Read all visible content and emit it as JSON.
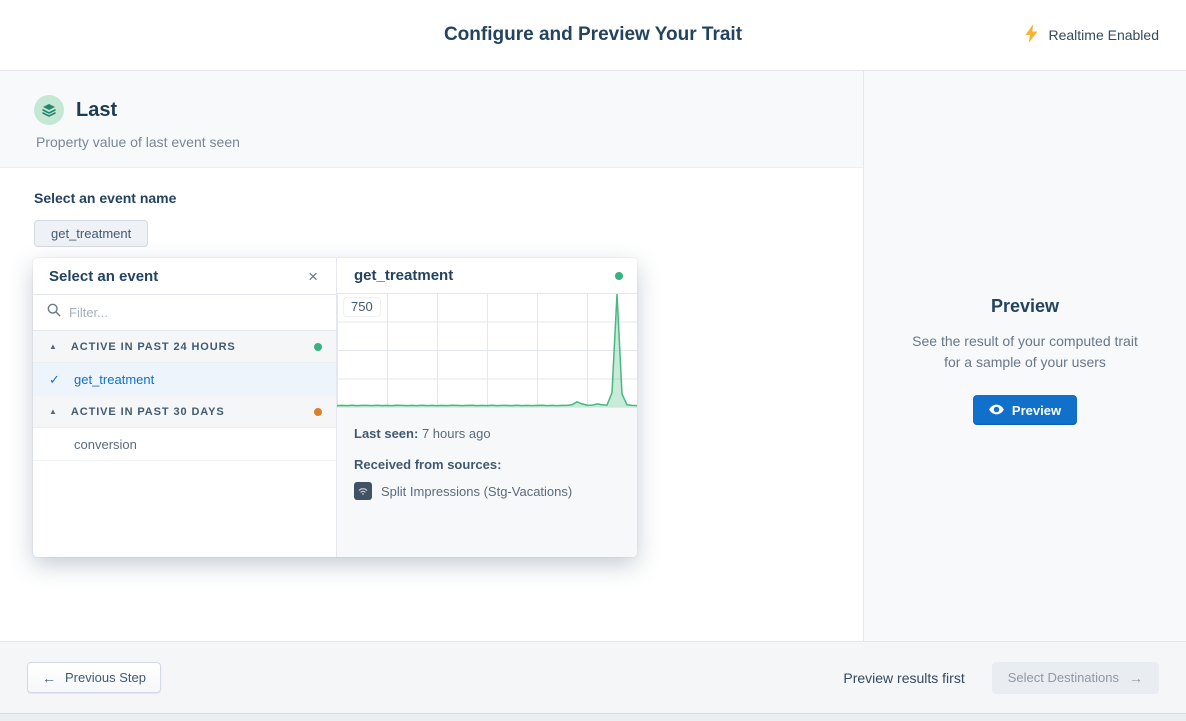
{
  "header": {
    "title": "Configure and Preview Your Trait",
    "realtime_label": "Realtime Enabled"
  },
  "trait": {
    "name": "Last",
    "description": "Property value of last event seen"
  },
  "config": {
    "event_label": "Select an event name",
    "selected_event_tag": "get_treatment"
  },
  "event_picker": {
    "title": "Select an event",
    "filter_placeholder": "Filter...",
    "groups": [
      {
        "label": "ACTIVE IN PAST 24 HOURS",
        "status_color": "#36b37e",
        "items": [
          {
            "label": "get_treatment",
            "selected": true
          }
        ]
      },
      {
        "label": "ACTIVE IN PAST 30 DAYS",
        "status_color": "#d9822b",
        "items": [
          {
            "label": "conversion",
            "selected": false
          }
        ]
      }
    ]
  },
  "event_detail": {
    "title": "get_treatment",
    "status_color": "#36b37e",
    "last_seen_label": "Last seen:",
    "last_seen_value": "7 hours ago",
    "sources_label": "Received from sources:",
    "sources": [
      "Split Impressions (Stg-Vacations)"
    ]
  },
  "chart_data": {
    "type": "area",
    "title": "get_treatment event volume",
    "y_tick_label": "750",
    "ylim": [
      0,
      750
    ],
    "line_color": "#47b881",
    "fill_color": "rgba(71,184,129,0.3)",
    "grid": true,
    "values": [
      3,
      4,
      3,
      5,
      3,
      4,
      4,
      3,
      5,
      3,
      4,
      3,
      5,
      4,
      3,
      4,
      3,
      5,
      3,
      4,
      3,
      4,
      3,
      5,
      4,
      3,
      4,
      5,
      3,
      4,
      3,
      5,
      3,
      4,
      4,
      3,
      5,
      3,
      4,
      3,
      4,
      5,
      3,
      4,
      3,
      4,
      4,
      8,
      28,
      14,
      6,
      5,
      14,
      8,
      6,
      90,
      750,
      80,
      8,
      4,
      3
    ]
  },
  "preview_panel": {
    "title": "Preview",
    "description": "See the result of your computed trait for a sample of your users",
    "button_label": "Preview"
  },
  "footer": {
    "previous_label": "Previous Step",
    "hint": "Preview results first",
    "next_label": "Select Destinations"
  },
  "icons": {
    "arrow_left": "←",
    "arrow_right": "→",
    "close": "×",
    "check": "✓",
    "collapse": "▲"
  },
  "colors": {
    "accent_blue": "#1070ca",
    "green": "#36b37e",
    "orange": "#d9822b",
    "bolt_yellow": "#f7b32b"
  }
}
